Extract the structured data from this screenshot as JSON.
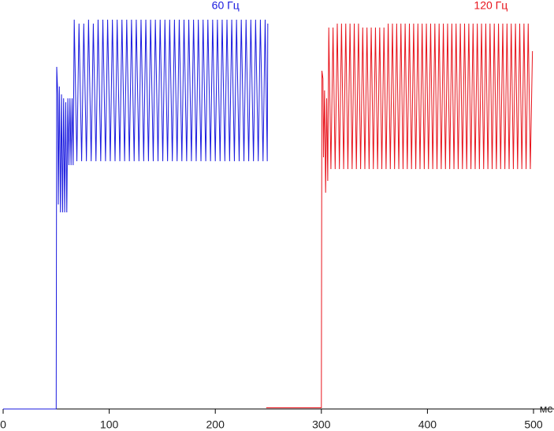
{
  "chart_data": {
    "type": "line",
    "x_label": "мс",
    "xlim": [
      0,
      500
    ],
    "xticks": [
      0,
      100,
      200,
      300,
      400,
      500
    ],
    "ylim": [
      0,
      100
    ],
    "series": [
      {
        "name": "60 Гц",
        "color": "#1a1adf",
        "x": [
          0,
          50,
          50.5,
          51.5,
          52,
          53,
          54,
          55,
          56,
          57,
          58,
          59,
          60,
          61,
          62,
          63,
          64,
          65,
          66,
          67,
          69.5,
          71.5,
          74,
          76,
          78.5,
          80.5,
          83,
          85,
          87.5,
          89.5,
          92,
          94,
          96.5,
          98.5,
          101,
          103,
          105.5,
          107.5,
          110,
          112,
          114.5,
          116.5,
          119,
          121,
          123.5,
          125.5,
          128,
          130,
          132.5,
          134.5,
          137,
          139,
          141.5,
          143.5,
          146,
          148,
          150.5,
          152.5,
          155,
          157,
          159.5,
          161.5,
          164,
          166,
          168.5,
          170.5,
          173,
          175,
          177.5,
          179.5,
          182,
          184,
          186.5,
          188.5,
          191,
          193,
          195.5,
          197.5,
          200,
          202,
          204.5,
          206.5,
          209,
          211,
          213.5,
          215.5,
          218,
          220,
          222.5,
          224.5,
          227,
          229,
          231.5,
          233.5,
          236,
          238,
          240.5,
          242.5,
          245,
          247,
          249,
          249.5
        ],
        "values": [
          0,
          0,
          87,
          80,
          52,
          82,
          50,
          80,
          50,
          79,
          50,
          78,
          50,
          79,
          62,
          79,
          62,
          79,
          62,
          99,
          63,
          98,
          63,
          98,
          63,
          99,
          63,
          98,
          63,
          99,
          63,
          99,
          63,
          99,
          63,
          99,
          63,
          99,
          63,
          99,
          63,
          99,
          63,
          99,
          63,
          99,
          63,
          99,
          63,
          99,
          63,
          99,
          63,
          99,
          63,
          99,
          63,
          99,
          63,
          99,
          63,
          99,
          63,
          99,
          63,
          99,
          63,
          99,
          63,
          99,
          63,
          99,
          63,
          99,
          63,
          99,
          63,
          99,
          63,
          99,
          63,
          99,
          63,
          99,
          63,
          99,
          63,
          99,
          63,
          99,
          63,
          99,
          63,
          99,
          63,
          99,
          63,
          99,
          63,
          99,
          63,
          98
        ]
      },
      {
        "name": "120 Гц",
        "color": "#e8141c",
        "x": [
          248,
          300,
          300.5,
          301.5,
          302,
          303,
          304,
          305,
          306,
          307,
          309,
          311,
          313,
          315,
          317,
          319,
          321,
          323,
          325,
          327,
          329,
          331,
          333,
          335,
          337,
          339,
          341,
          343,
          345,
          347,
          349,
          351,
          353,
          355,
          357,
          359,
          361,
          363,
          365,
          367,
          369,
          371,
          373,
          375,
          377,
          379,
          381,
          383,
          385,
          387,
          389,
          391,
          393,
          395,
          397,
          399,
          401,
          403,
          405,
          407,
          409,
          411,
          413,
          415,
          417,
          419,
          421,
          423,
          425,
          427,
          429,
          431,
          433,
          435,
          437,
          439,
          441,
          443,
          445,
          447,
          449,
          451,
          453,
          455,
          457,
          459,
          461,
          463,
          465,
          467,
          469,
          471,
          473,
          475,
          477,
          479,
          481,
          483,
          485,
          487,
          489,
          491,
          493,
          495,
          497,
          499
        ],
        "values": [
          0.3,
          0.3,
          86,
          84,
          64,
          81,
          55,
          79,
          58,
          97,
          61,
          97,
          61,
          98,
          61,
          98,
          61,
          98,
          61,
          98,
          61,
          98,
          61,
          98,
          61,
          97,
          61,
          97,
          61,
          97,
          61,
          97,
          61,
          97,
          61,
          97,
          61,
          98,
          61,
          98,
          61,
          98,
          61,
          98,
          61,
          98,
          61,
          98,
          61,
          98,
          61,
          98,
          61,
          98,
          61,
          98,
          61,
          98,
          61,
          98,
          61,
          98,
          61,
          98,
          61,
          98,
          61,
          98,
          61,
          98,
          61,
          98,
          61,
          98,
          61,
          98,
          61,
          98,
          61,
          98,
          61,
          98,
          61,
          98,
          61,
          98,
          61,
          98,
          61,
          98,
          61,
          98,
          61,
          98,
          61,
          98,
          61,
          98,
          61,
          98,
          61,
          98,
          61,
          98,
          61,
          91
        ]
      }
    ]
  }
}
